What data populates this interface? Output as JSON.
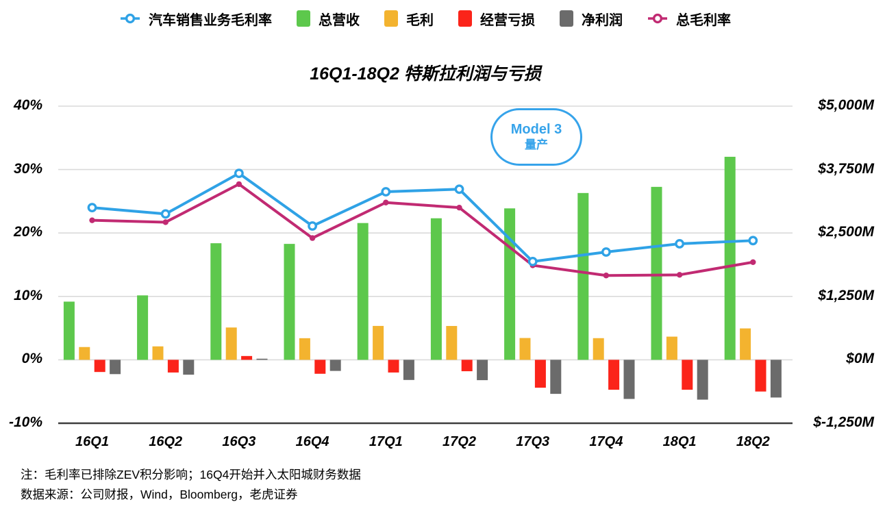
{
  "chart_data": {
    "type": "combo-bar-line",
    "title": "16Q1-18Q2 特斯拉利润与亏损",
    "categories": [
      "16Q1",
      "16Q2",
      "16Q3",
      "16Q4",
      "17Q1",
      "17Q2",
      "17Q3",
      "17Q4",
      "18Q1",
      "18Q2"
    ],
    "bar_series": [
      {
        "name": "总营收",
        "color": "#5dc84c",
        "unit": "$M",
        "values": [
          1147,
          1270,
          2298,
          2285,
          2696,
          2790,
          2985,
          3288,
          3409,
          4002
        ]
      },
      {
        "name": "毛利",
        "color": "#f3b32f",
        "unit": "$M",
        "values": [
          252,
          265,
          637,
          426,
          668,
          667,
          430,
          427,
          457,
          619
        ]
      },
      {
        "name": "经营亏损",
        "color": "#fb241a",
        "unit": "$M",
        "values": [
          -240,
          -250,
          75,
          -275,
          -250,
          -225,
          -550,
          -590,
          -590,
          -625
        ]
      },
      {
        "name": "净利润",
        "color": "#6b6b6b",
        "unit": "$M",
        "values": [
          -282,
          -293,
          22,
          -219,
          -397,
          -401,
          -671,
          -771,
          -785,
          -743
        ]
      }
    ],
    "line_series": [
      {
        "name": "总毛利率",
        "color": "#c12a72",
        "marker": "dot",
        "unit": "%",
        "values": [
          22.0,
          21.7,
          27.7,
          19.2,
          24.8,
          24.0,
          14.9,
          13.3,
          13.4,
          15.4
        ]
      },
      {
        "name": "汽车销售业务毛利率",
        "color": "#2fa2e6",
        "marker": "ring",
        "unit": "%",
        "values": [
          24.0,
          23.0,
          29.4,
          21.1,
          26.5,
          26.9,
          15.5,
          17.0,
          18.3,
          18.8
        ]
      }
    ],
    "left_axis": {
      "unit": "%",
      "min": -10,
      "max": 40,
      "tick_values": [
        40,
        30,
        20,
        10,
        0,
        -10
      ],
      "tick_labels": [
        "40%",
        "30%",
        "20%",
        "10%",
        "0%",
        "-10%"
      ]
    },
    "right_axis": {
      "unit": "$M",
      "min": -1250,
      "max": 5000,
      "tick_labels": [
        "$5,000M",
        "$3,750M",
        "$2,500M",
        "$1,250M",
        "$0M",
        "$-1,250M"
      ]
    },
    "grid": "horizontal",
    "legend_position": "top"
  },
  "legend": {
    "items": [
      {
        "label": "汽车销售业务毛利率",
        "icon": "ring",
        "color": "#2fa2e6"
      },
      {
        "label": "总营收",
        "icon": "square",
        "color": "#5dc84c"
      },
      {
        "label": "毛利",
        "icon": "square",
        "color": "#f3b32f"
      },
      {
        "label": "经营亏损",
        "icon": "square",
        "color": "#fb241a"
      },
      {
        "label": "净利润",
        "icon": "square",
        "color": "#6b6b6b"
      },
      {
        "label": "总毛利率",
        "icon": "ring",
        "color": "#c12a72"
      }
    ]
  },
  "annotation": {
    "line1": "Model 3",
    "line2": "量产",
    "color": "#36a3ea"
  },
  "notes": {
    "line1": "注：毛利率已排除ZEV积分影响；16Q4开始并入太阳城财务数据",
    "line2": "数据来源：公司财报，Wind，Bloomberg，老虎证券"
  },
  "colors": {
    "gridline": "#dadada",
    "axis_bottom": "#3d3d3d",
    "text": "#000000"
  }
}
